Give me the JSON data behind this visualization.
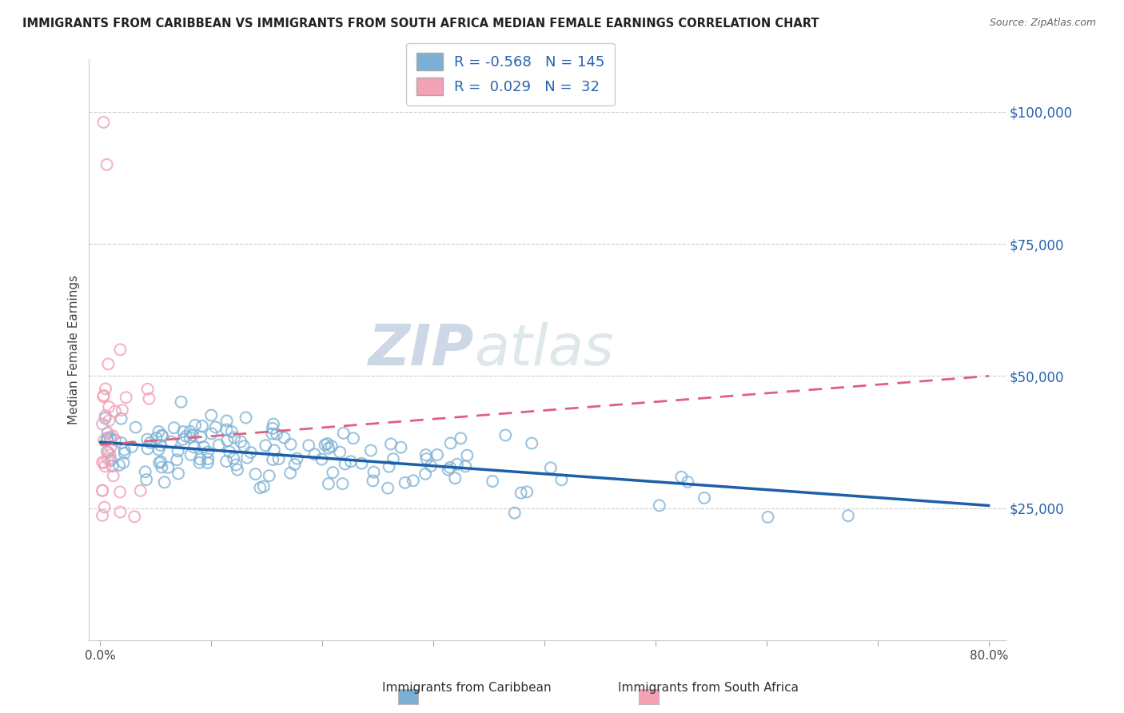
{
  "title": "IMMIGRANTS FROM CARIBBEAN VS IMMIGRANTS FROM SOUTH AFRICA MEDIAN FEMALE EARNINGS CORRELATION CHART",
  "source": "Source: ZipAtlas.com",
  "xlabel_caribbean": "Immigrants from Caribbean",
  "xlabel_south_africa": "Immigrants from South Africa",
  "ylabel": "Median Female Earnings",
  "r_caribbean": -0.568,
  "n_caribbean": 145,
  "r_south_africa": 0.029,
  "n_south_africa": 32,
  "xlim": [
    -0.01,
    0.815
  ],
  "ylim": [
    0,
    110000
  ],
  "yticks": [
    0,
    25000,
    50000,
    75000,
    100000
  ],
  "ytick_labels": [
    "",
    "$25,000",
    "$50,000",
    "$75,000",
    "$100,000"
  ],
  "xticks": [
    0.0,
    0.1,
    0.2,
    0.3,
    0.4,
    0.5,
    0.6,
    0.7,
    0.8
  ],
  "color_caribbean": "#7BAFD4",
  "color_south_africa": "#F4A0B5",
  "color_trendline_caribbean": "#1B5FA8",
  "color_trendline_south_africa": "#E06080",
  "background_color": "#FFFFFF",
  "watermark_zip": "ZIP",
  "watermark_atlas": "atlas",
  "trendline_carib_x0": 0.0,
  "trendline_carib_y0": 37500,
  "trendline_carib_x1": 0.8,
  "trendline_carib_y1": 25500,
  "trendline_sa_x0": 0.0,
  "trendline_sa_y0": 37000,
  "trendline_sa_x1": 0.8,
  "trendline_sa_y1": 50000
}
